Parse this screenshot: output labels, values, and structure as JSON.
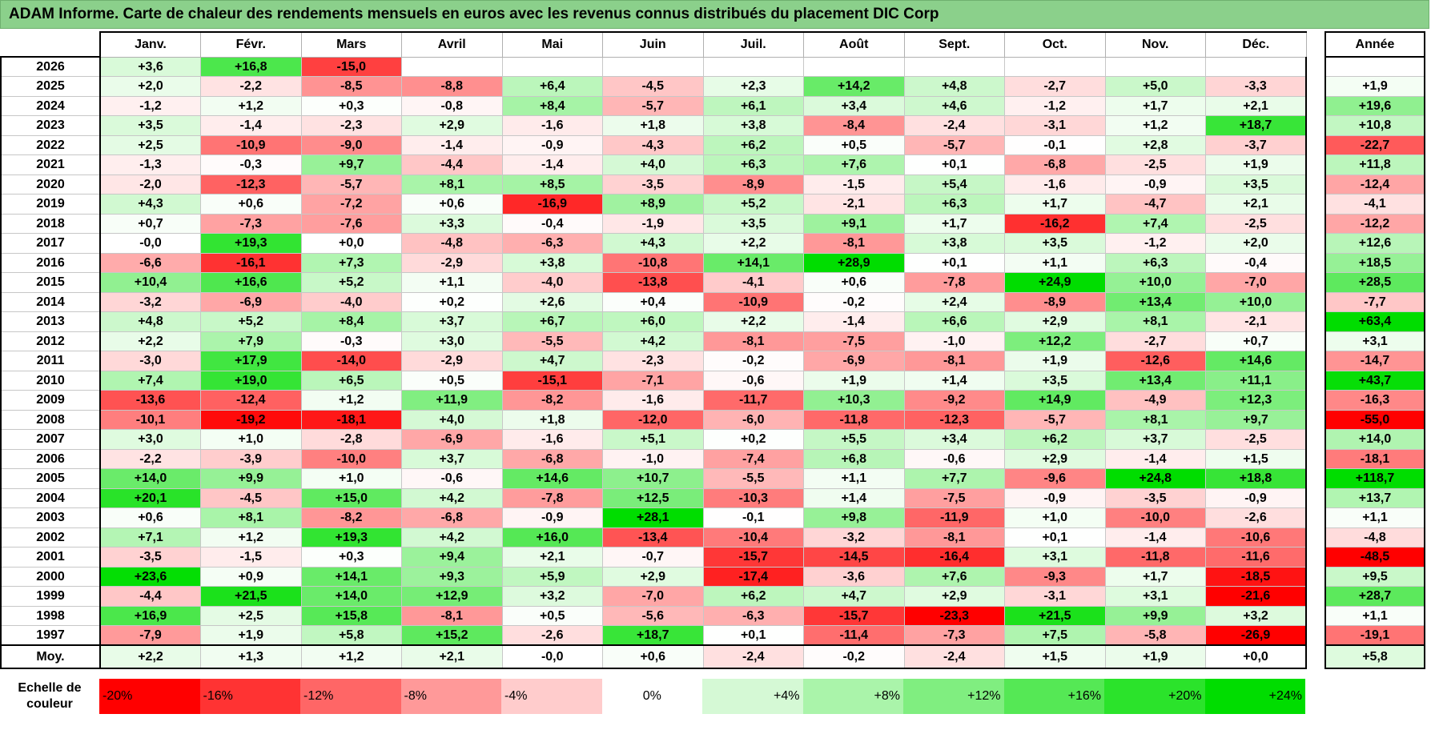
{
  "title": "ADAM Informe. Carte de chaleur des rendements mensuels en euros avec les revenus connus distribués du placement DIC Corp",
  "chart_data": {
    "type": "heatmap",
    "title": "ADAM Informe. Carte de chaleur des rendements mensuels en euros avec les revenus connus distribués du placement DIC Corp",
    "months": [
      "Janv.",
      "Févr.",
      "Mars",
      "Avril",
      "Mai",
      "Juin",
      "Juil.",
      "Août",
      "Sept.",
      "Oct.",
      "Nov.",
      "Déc."
    ],
    "annual_label": "Année",
    "average_label": "Moy.",
    "rows": [
      {
        "year": "2026",
        "values": [
          "+3,6",
          "+16,8",
          "-15,0",
          "",
          "",
          "",
          "",
          "",
          "",
          "",
          "",
          ""
        ],
        "annual": ""
      },
      {
        "year": "2025",
        "values": [
          "+2,0",
          "-2,2",
          "-8,5",
          "-8,8",
          "+6,4",
          "-4,5",
          "+2,3",
          "+14,2",
          "+4,8",
          "-2,7",
          "+5,0",
          "-3,3"
        ],
        "annual": "+1,9"
      },
      {
        "year": "2024",
        "values": [
          "-1,2",
          "+1,2",
          "+0,3",
          "-0,8",
          "+8,4",
          "-5,7",
          "+6,1",
          "+3,4",
          "+4,6",
          "-1,2",
          "+1,7",
          "+2,1"
        ],
        "annual": "+19,6"
      },
      {
        "year": "2023",
        "values": [
          "+3,5",
          "-1,4",
          "-2,3",
          "+2,9",
          "-1,6",
          "+1,8",
          "+3,8",
          "-8,4",
          "-2,4",
          "-3,1",
          "+1,2",
          "+18,7"
        ],
        "annual": "+10,8"
      },
      {
        "year": "2022",
        "values": [
          "+2,5",
          "-10,9",
          "-9,0",
          "-1,4",
          "-0,9",
          "-4,3",
          "+6,2",
          "+0,5",
          "-5,7",
          "-0,1",
          "+2,8",
          "-3,7"
        ],
        "annual": "-22,7"
      },
      {
        "year": "2021",
        "values": [
          "-1,3",
          "-0,3",
          "+9,7",
          "-4,4",
          "-1,4",
          "+4,0",
          "+6,3",
          "+7,6",
          "+0,1",
          "-6,8",
          "-2,5",
          "+1,9"
        ],
        "annual": "+11,8"
      },
      {
        "year": "2020",
        "values": [
          "-2,0",
          "-12,3",
          "-5,7",
          "+8,1",
          "+8,5",
          "-3,5",
          "-8,9",
          "-1,5",
          "+5,4",
          "-1,6",
          "-0,9",
          "+3,5"
        ],
        "annual": "-12,4"
      },
      {
        "year": "2019",
        "values": [
          "+4,3",
          "+0,6",
          "-7,2",
          "+0,6",
          "-16,9",
          "+8,9",
          "+5,2",
          "-2,1",
          "+6,3",
          "+1,7",
          "-4,7",
          "+2,1"
        ],
        "annual": "-4,1"
      },
      {
        "year": "2018",
        "values": [
          "+0,7",
          "-7,3",
          "-7,6",
          "+3,3",
          "-0,4",
          "-1,9",
          "+3,5",
          "+9,1",
          "+1,7",
          "-16,2",
          "+7,4",
          "-2,5"
        ],
        "annual": "-12,2"
      },
      {
        "year": "2017",
        "values": [
          "-0,0",
          "+19,3",
          "+0,0",
          "-4,8",
          "-6,3",
          "+4,3",
          "+2,2",
          "-8,1",
          "+3,8",
          "+3,5",
          "-1,2",
          "+2,0"
        ],
        "annual": "+12,6"
      },
      {
        "year": "2016",
        "values": [
          "-6,6",
          "-16,1",
          "+7,3",
          "-2,9",
          "+3,8",
          "-10,8",
          "+14,1",
          "+28,9",
          "+0,1",
          "+1,1",
          "+6,3",
          "-0,4"
        ],
        "annual": "+18,5"
      },
      {
        "year": "2015",
        "values": [
          "+10,4",
          "+16,6",
          "+5,2",
          "+1,1",
          "-4,0",
          "-13,8",
          "-4,1",
          "+0,6",
          "-7,8",
          "+24,9",
          "+10,0",
          "-7,0"
        ],
        "annual": "+28,5"
      },
      {
        "year": "2014",
        "values": [
          "-3,2",
          "-6,9",
          "-4,0",
          "+0,2",
          "+2,6",
          "+0,4",
          "-10,9",
          "-0,2",
          "+2,4",
          "-8,9",
          "+13,4",
          "+10,0"
        ],
        "annual": "-7,7"
      },
      {
        "year": "2013",
        "values": [
          "+4,8",
          "+5,2",
          "+8,4",
          "+3,7",
          "+6,7",
          "+6,0",
          "+2,2",
          "-1,4",
          "+6,6",
          "+2,9",
          "+8,1",
          "-2,1"
        ],
        "annual": "+63,4"
      },
      {
        "year": "2012",
        "values": [
          "+2,2",
          "+7,9",
          "-0,3",
          "+3,0",
          "-5,5",
          "+4,2",
          "-8,1",
          "-7,5",
          "-1,0",
          "+12,2",
          "-2,7",
          "+0,7"
        ],
        "annual": "+3,1"
      },
      {
        "year": "2011",
        "values": [
          "-3,0",
          "+17,9",
          "-14,0",
          "-2,9",
          "+4,7",
          "-2,3",
          "-0,2",
          "-6,9",
          "-8,1",
          "+1,9",
          "-12,6",
          "+14,6"
        ],
        "annual": "-14,7"
      },
      {
        "year": "2010",
        "values": [
          "+7,4",
          "+19,0",
          "+6,5",
          "+0,5",
          "-15,1",
          "-7,1",
          "-0,6",
          "+1,9",
          "+1,4",
          "+3,5",
          "+13,4",
          "+11,1"
        ],
        "annual": "+43,7"
      },
      {
        "year": "2009",
        "values": [
          "-13,6",
          "-12,4",
          "+1,2",
          "+11,9",
          "-8,2",
          "-1,6",
          "-11,7",
          "+10,3",
          "-9,2",
          "+14,9",
          "-4,9",
          "+12,3"
        ],
        "annual": "-16,3"
      },
      {
        "year": "2008",
        "values": [
          "-10,1",
          "-19,2",
          "-18,1",
          "+4,0",
          "+1,8",
          "-12,0",
          "-6,0",
          "-11,8",
          "-12,3",
          "-5,7",
          "+8,1",
          "+9,7"
        ],
        "annual": "-55,0"
      },
      {
        "year": "2007",
        "values": [
          "+3,0",
          "+1,0",
          "-2,8",
          "-6,9",
          "-1,6",
          "+5,1",
          "+0,2",
          "+5,5",
          "+3,4",
          "+6,2",
          "+3,7",
          "-2,5"
        ],
        "annual": "+14,0"
      },
      {
        "year": "2006",
        "values": [
          "-2,2",
          "-3,9",
          "-10,0",
          "+3,7",
          "-6,8",
          "-1,0",
          "-7,4",
          "+6,8",
          "-0,6",
          "+2,9",
          "-1,4",
          "+1,5"
        ],
        "annual": "-18,1"
      },
      {
        "year": "2005",
        "values": [
          "+14,0",
          "+9,9",
          "+1,0",
          "-0,6",
          "+14,6",
          "+10,7",
          "-5,5",
          "+1,1",
          "+7,7",
          "-9,6",
          "+24,8",
          "+18,8"
        ],
        "annual": "+118,7"
      },
      {
        "year": "2004",
        "values": [
          "+20,1",
          "-4,5",
          "+15,0",
          "+4,2",
          "-7,8",
          "+12,5",
          "-10,3",
          "+1,4",
          "-7,5",
          "-0,9",
          "-3,5",
          "-0,9"
        ],
        "annual": "+13,7"
      },
      {
        "year": "2003",
        "values": [
          "+0,6",
          "+8,1",
          "-8,2",
          "-6,8",
          "-0,9",
          "+28,1",
          "-0,1",
          "+9,8",
          "-11,9",
          "+1,0",
          "-10,0",
          "-2,6"
        ],
        "annual": "+1,1"
      },
      {
        "year": "2002",
        "values": [
          "+7,1",
          "+1,2",
          "+19,3",
          "+4,2",
          "+16,0",
          "-13,4",
          "-10,4",
          "-3,2",
          "-8,1",
          "+0,1",
          "-1,4",
          "-10,6"
        ],
        "annual": "-4,8"
      },
      {
        "year": "2001",
        "values": [
          "-3,5",
          "-1,5",
          "+0,3",
          "+9,4",
          "+2,1",
          "-0,7",
          "-15,7",
          "-14,5",
          "-16,4",
          "+3,1",
          "-11,8",
          "-11,6"
        ],
        "annual": "-48,5"
      },
      {
        "year": "2000",
        "values": [
          "+23,6",
          "+0,9",
          "+14,1",
          "+9,3",
          "+5,9",
          "+2,9",
          "-17,4",
          "-3,6",
          "+7,6",
          "-9,3",
          "+1,7",
          "-18,5"
        ],
        "annual": "+9,5"
      },
      {
        "year": "1999",
        "values": [
          "-4,4",
          "+21,5",
          "+14,0",
          "+12,9",
          "+3,2",
          "-7,0",
          "+6,2",
          "+4,7",
          "+2,9",
          "-3,1",
          "+3,1",
          "-21,6"
        ],
        "annual": "+28,7"
      },
      {
        "year": "1998",
        "values": [
          "+16,9",
          "+2,5",
          "+15,8",
          "-8,1",
          "+0,5",
          "-5,6",
          "-6,3",
          "-15,7",
          "-23,3",
          "+21,5",
          "+9,9",
          "+3,2"
        ],
        "annual": "+1,1"
      },
      {
        "year": "1997",
        "values": [
          "-7,9",
          "+1,9",
          "+5,8",
          "+15,2",
          "-2,6",
          "+18,7",
          "+0,1",
          "-11,4",
          "-7,3",
          "+7,5",
          "-5,8",
          "-26,9"
        ],
        "annual": "-19,1"
      }
    ],
    "average": {
      "values": [
        "+2,2",
        "+1,3",
        "+1,2",
        "+2,1",
        "-0,0",
        "+0,6",
        "-2,4",
        "-0,2",
        "-2,4",
        "+1,5",
        "+1,9",
        "+0,0"
      ],
      "annual": "+5,8"
    },
    "scale_label": "Echelle de couleur",
    "scale": [
      "-20%",
      "-16%",
      "-12%",
      "-8%",
      "-4%",
      "0%",
      "+4%",
      "+8%",
      "+12%",
      "+16%",
      "+20%",
      "+24%"
    ],
    "colors": {
      "negative_max": "#ff0000",
      "positive_max": "#00dd00",
      "neutral": "#ffffff",
      "title_bg": "#8bd08b"
    }
  }
}
